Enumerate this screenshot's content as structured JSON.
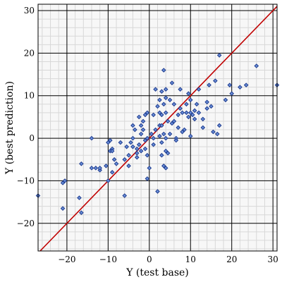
{
  "chart_data": {
    "type": "scatter",
    "xlabel": "Y (test base)",
    "ylabel": "Y (best prediction)",
    "xlim": [
      -27,
      31
    ],
    "ylim": [
      -26.5,
      31.5
    ],
    "xticks": [
      -20,
      -10,
      0,
      10,
      20,
      30
    ],
    "yticks": [
      -20,
      -10,
      0,
      10,
      20,
      30
    ],
    "xtick_labels": [
      "−20",
      "−10",
      "0",
      "10",
      "20",
      "30"
    ],
    "ytick_labels": [
      "−20",
      "−10",
      "0",
      "10",
      "20",
      "30"
    ],
    "grid": true,
    "reference_line": {
      "from": [
        -26.5,
        -26.5
      ],
      "to": [
        31,
        31
      ]
    },
    "colors": {
      "background": "#f7f7f7",
      "major_grid": "#000000",
      "minor_grid": "#d8d8d8",
      "reference_line": "#c00000",
      "marker_fill": "#6a8fd8",
      "marker_edge": "#1f3c8f"
    },
    "points": [
      [
        -27,
        -13.5
      ],
      [
        -21,
        -16.5
      ],
      [
        -21,
        -10.5
      ],
      [
        -20.5,
        -10
      ],
      [
        -17,
        -14
      ],
      [
        -16.5,
        -6
      ],
      [
        -16.5,
        -17.5
      ],
      [
        -14,
        0
      ],
      [
        -14,
        -7
      ],
      [
        -13,
        -7
      ],
      [
        -12,
        -7.5
      ],
      [
        -12,
        -7
      ],
      [
        -10.5,
        -6.5
      ],
      [
        -10,
        -1
      ],
      [
        -10,
        -10
      ],
      [
        -9.5,
        -0.5
      ],
      [
        -9.5,
        -3
      ],
      [
        -9,
        -2.5
      ],
      [
        -9,
        -3
      ],
      [
        -9,
        -8
      ],
      [
        -8.5,
        -5
      ],
      [
        -8,
        -6
      ],
      [
        -7,
        -1
      ],
      [
        -6,
        -13.5
      ],
      [
        -6,
        -5
      ],
      [
        -5.5,
        -2
      ],
      [
        -5,
        -4
      ],
      [
        -5,
        -6.5
      ],
      [
        -4.5,
        -1
      ],
      [
        -4,
        3
      ],
      [
        -4,
        0
      ],
      [
        -4,
        -2
      ],
      [
        -3.5,
        2
      ],
      [
        -3,
        -3.5
      ],
      [
        -3,
        -2.5
      ],
      [
        -3,
        -4.5
      ],
      [
        -2.5,
        5
      ],
      [
        -2.5,
        -1.5
      ],
      [
        -2,
        3
      ],
      [
        -2,
        1
      ],
      [
        -2,
        -3
      ],
      [
        -1.5,
        4
      ],
      [
        -1.5,
        2
      ],
      [
        -1,
        5.5
      ],
      [
        -1,
        -0.5
      ],
      [
        -1,
        -2.5
      ],
      [
        -0.5,
        6
      ],
      [
        -0.5,
        0
      ],
      [
        -0.5,
        -4
      ],
      [
        -0.5,
        -9.5
      ],
      [
        0,
        -7
      ],
      [
        0.5,
        1
      ],
      [
        1,
        5.5
      ],
      [
        1,
        0
      ],
      [
        1,
        -1.5
      ],
      [
        1.5,
        11.5
      ],
      [
        1.5,
        2
      ],
      [
        2,
        7.5
      ],
      [
        2,
        -12.5
      ],
      [
        2.5,
        9
      ],
      [
        2.5,
        6
      ],
      [
        2.5,
        3
      ],
      [
        2.5,
        0.5
      ],
      [
        3,
        11
      ],
      [
        3,
        5.5
      ],
      [
        3,
        3
      ],
      [
        3,
        -1
      ],
      [
        3,
        -4
      ],
      [
        3.5,
        16
      ],
      [
        3.5,
        8
      ],
      [
        3.5,
        1
      ],
      [
        3.5,
        -6.5
      ],
      [
        4,
        11.5
      ],
      [
        4,
        9.5
      ],
      [
        4,
        6
      ],
      [
        4,
        0
      ],
      [
        4,
        -3
      ],
      [
        4,
        -7
      ],
      [
        4.5,
        4
      ],
      [
        4.5,
        -3.5
      ],
      [
        5,
        9
      ],
      [
        5,
        1
      ],
      [
        5.5,
        13
      ],
      [
        5.5,
        3.5
      ],
      [
        6,
        8
      ],
      [
        6,
        4
      ],
      [
        6.5,
        0
      ],
      [
        6.5,
        -0.5
      ],
      [
        7,
        5.5
      ],
      [
        7,
        2.5
      ],
      [
        7.5,
        11.5
      ],
      [
        7.5,
        7
      ],
      [
        8,
        6
      ],
      [
        8,
        1.5
      ],
      [
        8.5,
        2
      ],
      [
        9,
        8
      ],
      [
        9,
        6
      ],
      [
        9.5,
        10.5
      ],
      [
        9.5,
        5
      ],
      [
        10,
        9
      ],
      [
        10,
        6
      ],
      [
        10,
        0.5
      ],
      [
        10.5,
        5.5
      ],
      [
        11,
        6.5
      ],
      [
        11,
        4.5
      ],
      [
        11.5,
        8
      ],
      [
        12,
        11.5
      ],
      [
        12,
        6
      ],
      [
        13,
        4.5
      ],
      [
        13,
        2.5
      ],
      [
        14,
        8.5
      ],
      [
        14,
        7
      ],
      [
        14.5,
        12.5
      ],
      [
        15,
        7.5
      ],
      [
        15.5,
        1.5
      ],
      [
        16,
        13.5
      ],
      [
        16.5,
        1
      ],
      [
        17,
        19.5
      ],
      [
        17,
        3
      ],
      [
        18.5,
        9
      ],
      [
        19.5,
        12.5
      ],
      [
        20,
        10.5
      ],
      [
        22,
        12
      ],
      [
        23.5,
        12.5
      ],
      [
        26,
        17
      ],
      [
        31,
        12.5
      ]
    ]
  }
}
